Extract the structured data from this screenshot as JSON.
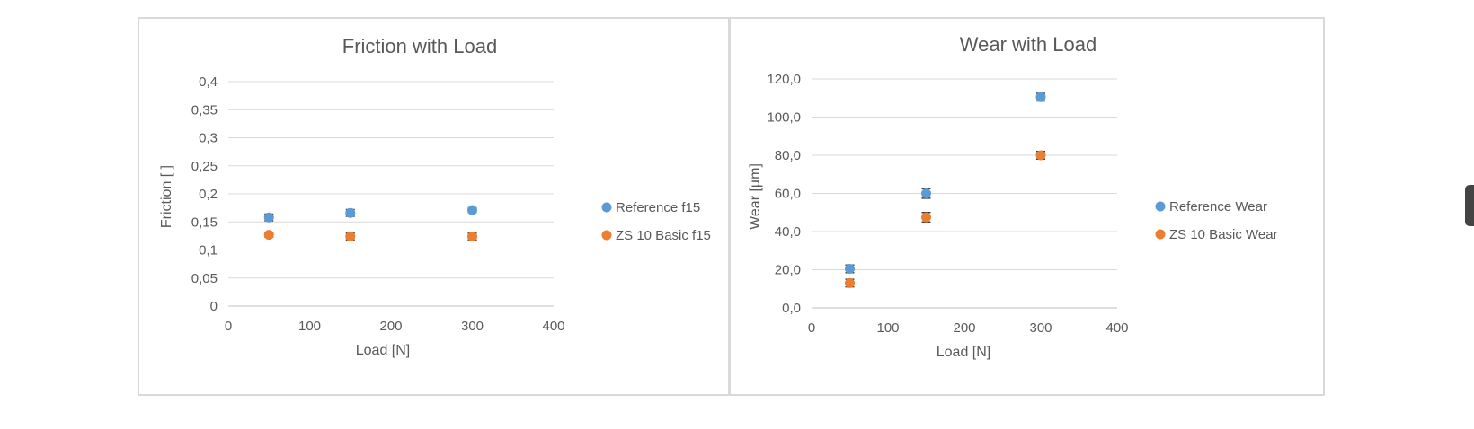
{
  "colors": {
    "reference": "#5b9bd5",
    "zs10": "#ed7d31"
  },
  "chart_data": [
    {
      "type": "scatter",
      "title": "Friction with Load",
      "xlabel": "Load [N]",
      "ylabel": "Friction [ ]",
      "xlim": [
        0,
        400
      ],
      "ylim": [
        0,
        0.4
      ],
      "xticks": [
        "0",
        "100",
        "200",
        "300",
        "400"
      ],
      "yticks": [
        "0",
        "0,05",
        "0,1",
        "0,15",
        "0,2",
        "0,25",
        "0,3",
        "0,35",
        "0,4"
      ],
      "grid": true,
      "legend_position": "right",
      "series": [
        {
          "name": "Reference f15",
          "color": "reference",
          "x": [
            50,
            150,
            300
          ],
          "y": [
            0.158,
            0.166,
            0.171
          ],
          "err": [
            0.006,
            0.006,
            0.004
          ]
        },
        {
          "name": "ZS 10 Basic f15",
          "color": "zs10",
          "x": [
            50,
            150,
            300
          ],
          "y": [
            0.127,
            0.124,
            0.124
          ],
          "err": [
            0.004,
            0.006,
            0.006
          ]
        }
      ]
    },
    {
      "type": "scatter",
      "title": "Wear with Load",
      "xlabel": "Load [N]",
      "ylabel": "Wear [µm]",
      "xlim": [
        0,
        400
      ],
      "ylim": [
        0,
        120
      ],
      "xticks": [
        "0",
        "100",
        "200",
        "300",
        "400"
      ],
      "yticks": [
        "0,0",
        "20,0",
        "40,0",
        "60,0",
        "80,0",
        "100,0",
        "120,0"
      ],
      "grid": true,
      "legend_position": "right",
      "series": [
        {
          "name": "Reference Wear",
          "color": "reference",
          "x": [
            50,
            150,
            300
          ],
          "y": [
            20.5,
            60.0,
            110.5
          ],
          "err": [
            2.0,
            2.5,
            2.0
          ]
        },
        {
          "name": "ZS 10 Basic Wear",
          "color": "zs10",
          "x": [
            50,
            150,
            300
          ],
          "y": [
            13.0,
            47.5,
            80.0
          ],
          "err": [
            2.0,
            2.5,
            2.0
          ]
        }
      ]
    }
  ]
}
